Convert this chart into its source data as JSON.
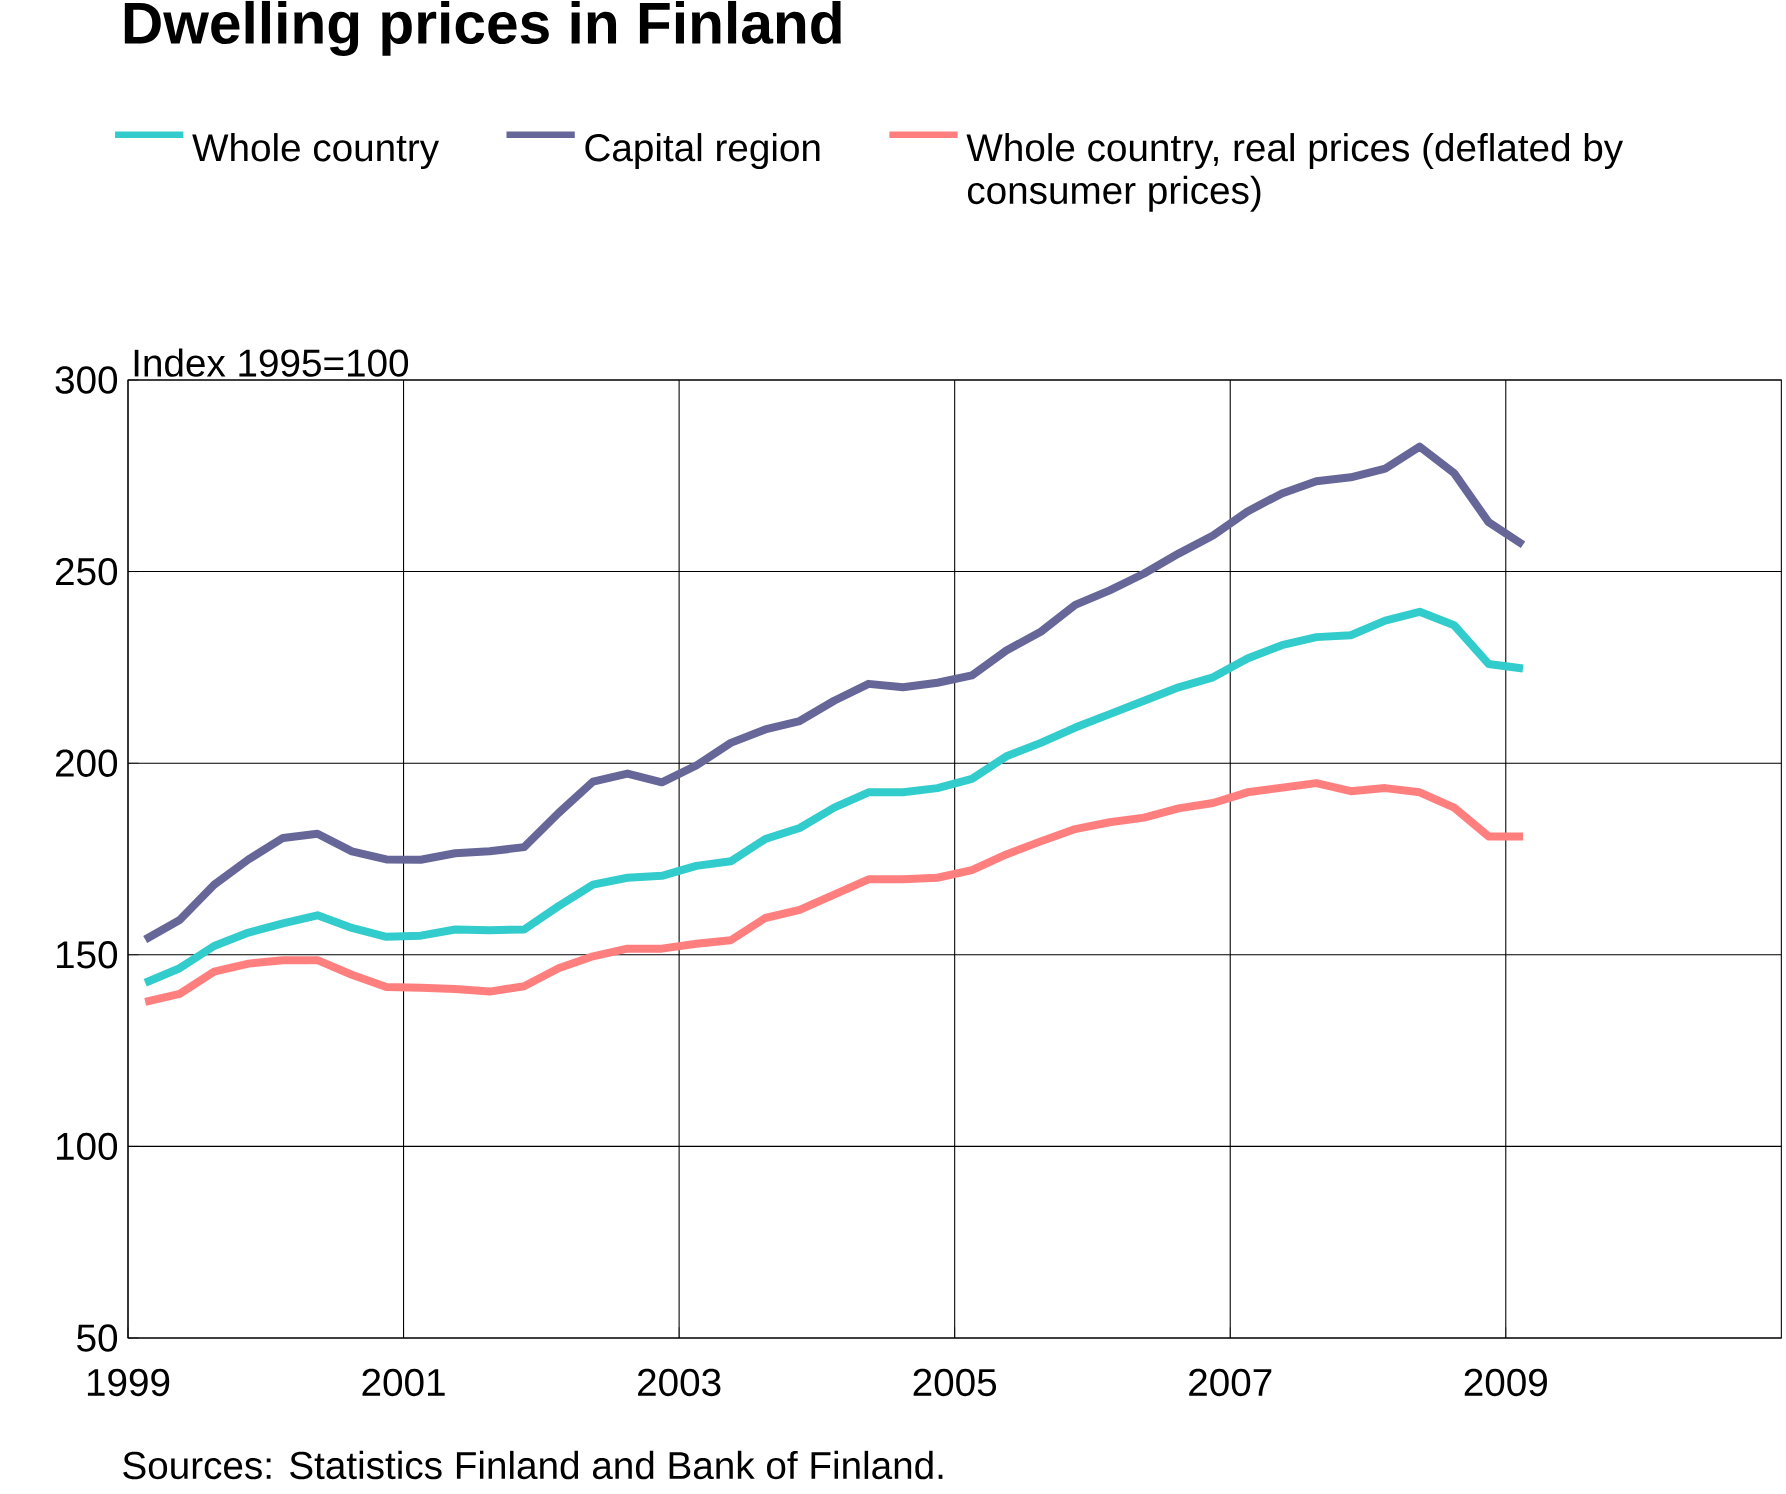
{
  "chart_data": {
    "type": "line",
    "title": "Dwelling prices in Finland",
    "ylabel": "Index 1995=100",
    "x": [
      1999.125,
      1999.375,
      1999.625,
      1999.875,
      2000.125,
      2000.375,
      2000.625,
      2000.875,
      2001.125,
      2001.375,
      2001.625,
      2001.875,
      2002.125,
      2002.375,
      2002.625,
      2002.875,
      2003.125,
      2003.375,
      2003.625,
      2003.875,
      2004.125,
      2004.375,
      2004.625,
      2004.875,
      2005.125,
      2005.375,
      2005.625,
      2005.875,
      2006.125,
      2006.375,
      2006.625,
      2006.875,
      2007.125,
      2007.375,
      2007.625,
      2007.875,
      2008.125,
      2008.375,
      2008.625,
      2008.875,
      2009.125
    ],
    "series": [
      {
        "name": "Whole country",
        "color": "#33cccc",
        "values": [
          142.7,
          146.5,
          152.3,
          155.8,
          158.2,
          160.3,
          157.0,
          154.7,
          155.0,
          156.6,
          156.4,
          156.6,
          162.7,
          168.3,
          170.1,
          170.6,
          173.2,
          174.4,
          180.2,
          183.1,
          188.4,
          192.4,
          192.4,
          193.5,
          195.9,
          201.8,
          205.3,
          209.3,
          212.8,
          216.3,
          219.8,
          222.4,
          227.3,
          230.8,
          232.9,
          233.4,
          237.2,
          239.5,
          236.0,
          225.9,
          224.7
        ]
      },
      {
        "name": "Capital region",
        "color": "#666699",
        "values": [
          154.0,
          159.1,
          168.3,
          174.9,
          180.5,
          181.6,
          177.0,
          174.9,
          174.8,
          176.5,
          177.0,
          178.1,
          187.0,
          195.2,
          197.3,
          195.0,
          199.4,
          205.3,
          208.8,
          211.0,
          216.3,
          220.7,
          219.8,
          221.0,
          222.9,
          229.4,
          234.3,
          241.3,
          245.1,
          249.5,
          254.7,
          259.4,
          265.7,
          270.4,
          273.6,
          274.6,
          276.9,
          282.6,
          275.7,
          262.9,
          257.0
        ]
      },
      {
        "name": "Whole country, real prices (deflated by consumer prices)",
        "color": "#ff7f7f",
        "values": [
          137.7,
          139.8,
          145.6,
          147.7,
          148.6,
          148.6,
          144.8,
          141.6,
          141.4,
          141.1,
          140.4,
          141.8,
          146.5,
          149.6,
          151.6,
          151.6,
          152.9,
          153.8,
          159.6,
          161.7,
          165.7,
          169.7,
          169.7,
          170.1,
          172.1,
          176.2,
          179.6,
          182.8,
          184.6,
          185.8,
          188.2,
          189.6,
          192.4,
          193.6,
          194.8,
          192.7,
          193.5,
          192.4,
          188.4,
          180.9,
          180.9
        ]
      }
    ],
    "xlim": [
      1999,
      2011
    ],
    "xticks": [
      1999,
      2001,
      2003,
      2005,
      2007,
      2009
    ],
    "ylim": [
      50,
      300
    ],
    "yticks": [
      50,
      100,
      150,
      200,
      250,
      300
    ],
    "grid": true,
    "legend": "top",
    "marker": "none",
    "line_style": "solid",
    "annotations": [
      "Sources: Statistics Finland and Bank of Finland."
    ]
  }
}
